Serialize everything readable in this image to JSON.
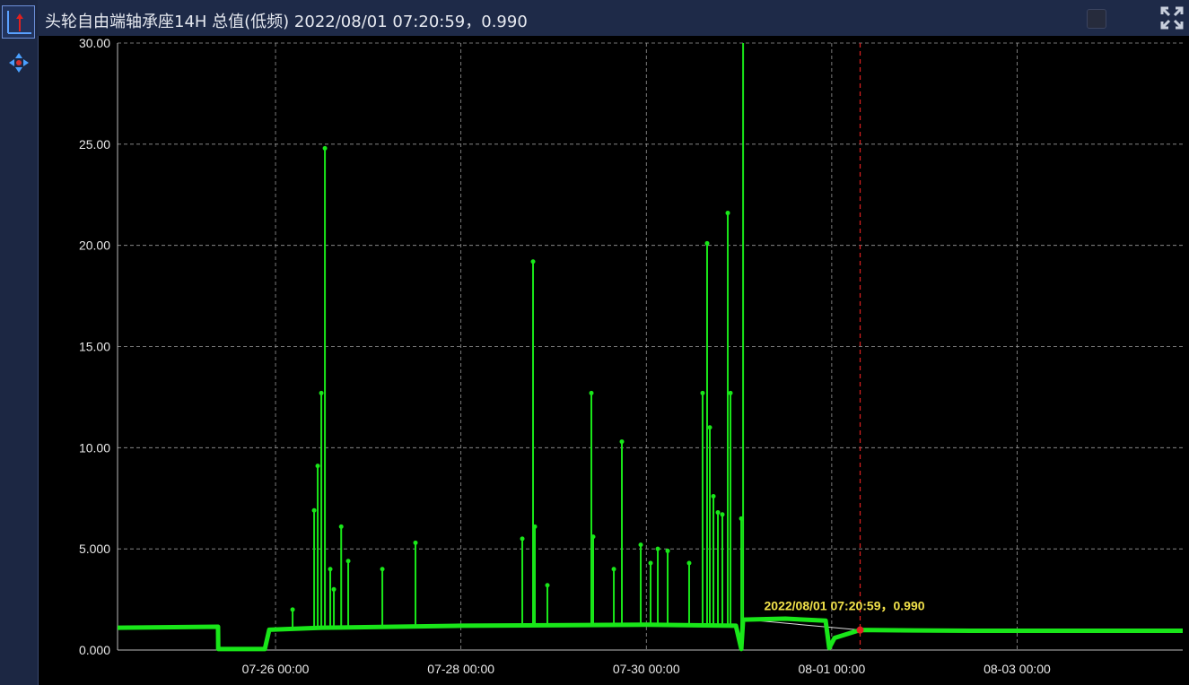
{
  "title": "头轮自由端轴承座14H 总值(低频) 2022/08/01 07:20:59，0.990",
  "toolbar": {
    "items": [
      {
        "icon": "axis-icon",
        "active": true
      },
      {
        "icon": "move-icon"
      }
    ]
  },
  "header_controls": {
    "checkbox_checked": false,
    "expand_icon": "expand-icon"
  },
  "colors": {
    "series": "#19e619",
    "marker": "#c0392b",
    "cursor": "#e02020",
    "annotation": "#f1e14a",
    "grid": "#9a9a9a"
  },
  "chart_data": {
    "type": "line",
    "title": "头轮自由端轴承座14H 总值(低频)",
    "ylim": [
      0,
      30
    ],
    "xlim": [
      "2022/07/24 07:06",
      "2022/08/04 18:52"
    ],
    "yticks": [
      "0.000",
      "5.000",
      "10.00",
      "15.00",
      "20.00",
      "25.00",
      "30.00"
    ],
    "ytick_values": [
      0,
      5,
      10,
      15,
      20,
      25,
      30
    ],
    "xticks": [
      "07-26 00:00",
      "07-28 00:00",
      "07-30 00:00",
      "08-01 00:00",
      "08-03 00:00"
    ],
    "xtick_values": [
      "2022/07/26 00:00",
      "2022/07/28 00:00",
      "2022/07/30 00:00",
      "2022/08/01 00:00",
      "2022/08/03 00:00"
    ],
    "grid": true,
    "baseline": [
      [
        "2022/07/24 07:06",
        1.1
      ],
      [
        "2022/07/25 09:07",
        1.15
      ],
      [
        "2022/07/25 09:10",
        0.05
      ],
      [
        "2022/07/25 21:14",
        0.05
      ],
      [
        "2022/07/25 22:22",
        1.0
      ],
      [
        "2022/07/26 12:00",
        1.1
      ],
      [
        "2022/07/28 00:00",
        1.2
      ],
      [
        "2022/07/30 00:00",
        1.25
      ],
      [
        "2022/07/30 23:11",
        1.2
      ],
      [
        "2022/07/31 00:35",
        0.05
      ],
      [
        "2022/07/31 01:03",
        1.5
      ],
      [
        "2022/07/31 12:00",
        1.55
      ],
      [
        "2022/07/31 22:25",
        1.45
      ],
      [
        "2022/07/31 23:21",
        0.1
      ],
      [
        "2022/08/01 00:44",
        0.6
      ],
      [
        "2022/08/01 07:20:59",
        0.99
      ],
      [
        "2022/08/02 12:00",
        0.95
      ],
      [
        "2022/08/04 18:52",
        0.95
      ]
    ],
    "spikes": [
      [
        "2022/07/26 04:25",
        2.0
      ],
      [
        "2022/07/26 10:00",
        6.9
      ],
      [
        "2022/07/26 10:55",
        9.1
      ],
      [
        "2022/07/26 11:51",
        12.7
      ],
      [
        "2022/07/26 12:47",
        24.8
      ],
      [
        "2022/07/26 14:10",
        4.0
      ],
      [
        "2022/07/26 15:06",
        3.0
      ],
      [
        "2022/07/26 17:00",
        6.1
      ],
      [
        "2022/07/26 18:49",
        4.4
      ],
      [
        "2022/07/27 03:39",
        4.0
      ],
      [
        "2022/07/27 12:14",
        5.3
      ],
      [
        "2022/07/28 15:53",
        5.5
      ],
      [
        "2022/07/28 18:40",
        19.2
      ],
      [
        "2022/07/28 19:08",
        6.1
      ],
      [
        "2022/07/28 22:23",
        3.2
      ],
      [
        "2022/07/29 09:46",
        12.7
      ],
      [
        "2022/07/29 10:14",
        5.6
      ],
      [
        "2022/07/29 15:35",
        4.0
      ],
      [
        "2022/07/29 17:40",
        10.3
      ],
      [
        "2022/07/29 22:33",
        5.2
      ],
      [
        "2022/07/30 01:06",
        4.3
      ],
      [
        "2022/07/30 02:58",
        5.0
      ],
      [
        "2022/07/30 05:31",
        4.9
      ],
      [
        "2022/07/30 11:05",
        4.3
      ],
      [
        "2022/07/30 14:34",
        12.7
      ],
      [
        "2022/07/30 15:44",
        20.1
      ],
      [
        "2022/07/30 16:26",
        11.0
      ],
      [
        "2022/07/30 17:22",
        7.6
      ],
      [
        "2022/07/30 18:32",
        6.8
      ],
      [
        "2022/07/30 19:41",
        6.7
      ],
      [
        "2022/07/30 21:05",
        21.6
      ],
      [
        "2022/07/30 21:47",
        12.7
      ],
      [
        "2022/07/31 00:35",
        6.5
      ],
      [
        "2022/07/31 01:03",
        30
      ]
    ],
    "cursor": {
      "time": "2022/08/01 07:20:59",
      "value": 0.99,
      "label": "2022/08/01 07:20:59，0.990"
    }
  }
}
